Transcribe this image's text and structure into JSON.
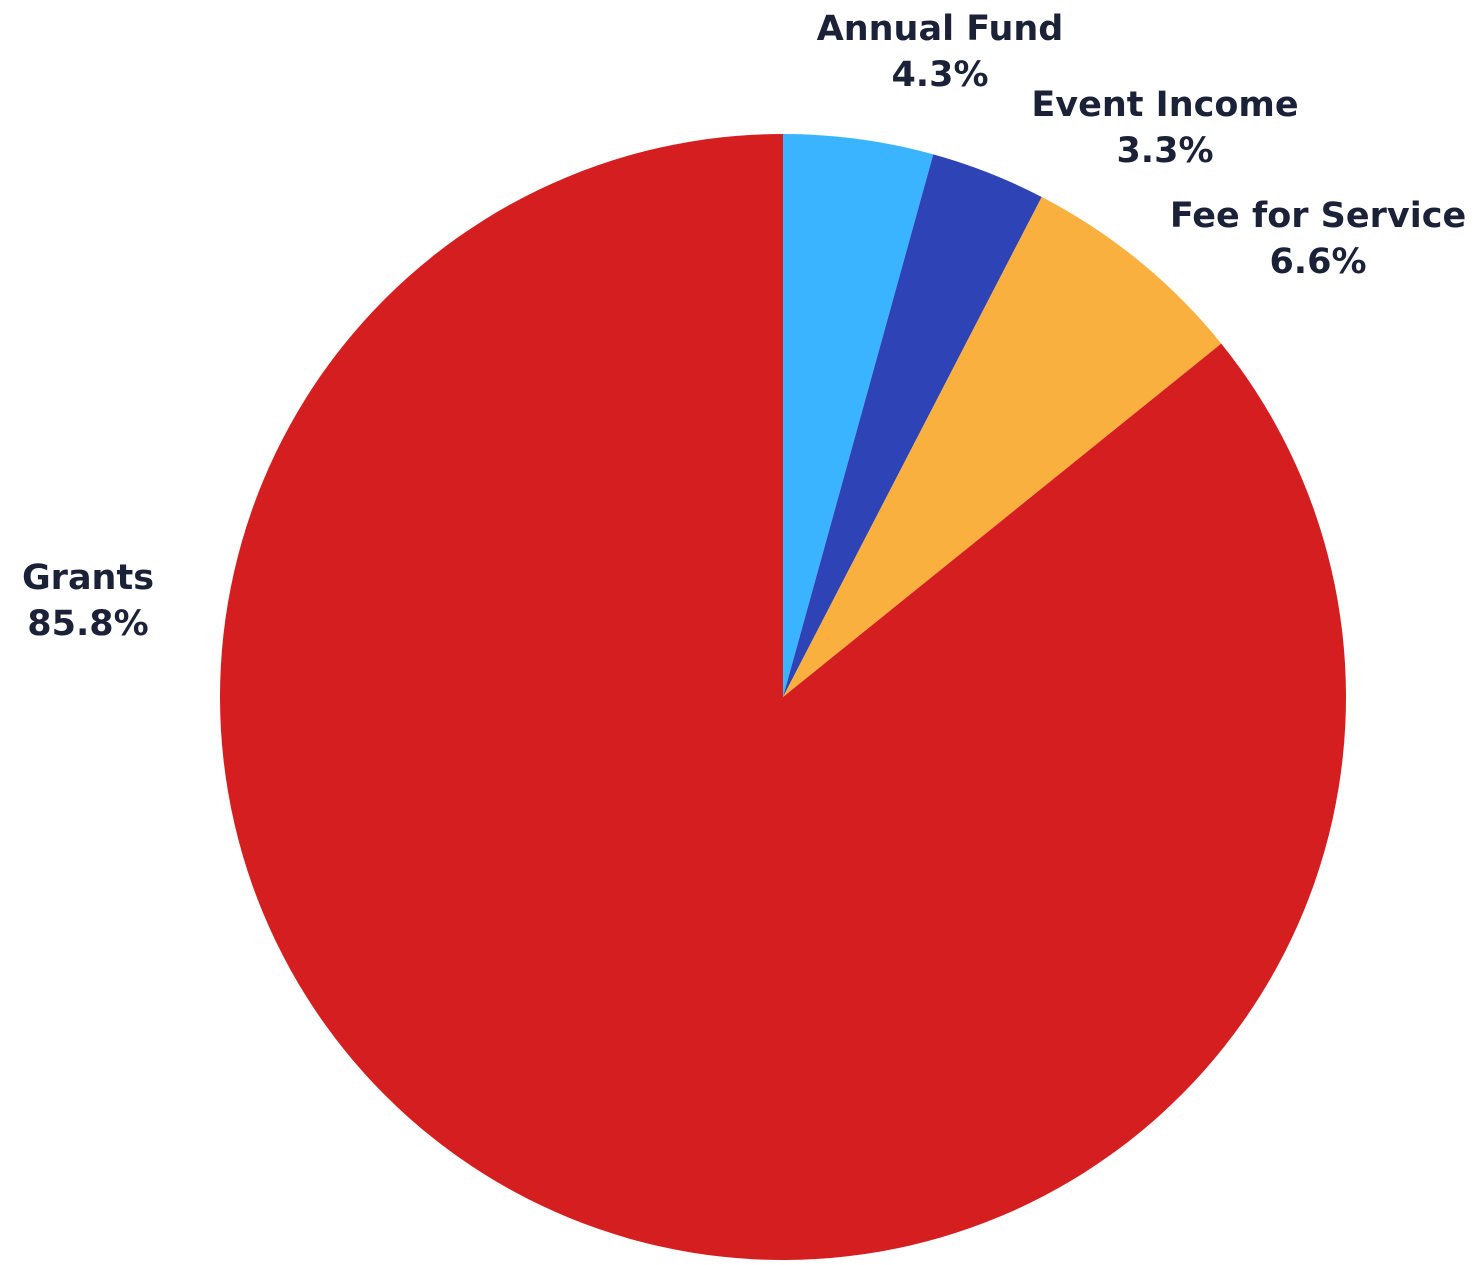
{
  "chart_data": {
    "type": "pie",
    "start_angle_deg": 0,
    "direction": "clockwise",
    "slices": [
      {
        "label": "Annual Fund",
        "value": 4.3,
        "value_label": "4.3%",
        "color": "#3bb4ff"
      },
      {
        "label": "Event Income",
        "value": 3.3,
        "value_label": "3.3%",
        "color": "#2e44b6"
      },
      {
        "label": "Fee for Service",
        "value": 6.6,
        "value_label": "6.6%",
        "color": "#f9b03f"
      },
      {
        "label": "Grants",
        "value": 85.8,
        "value_label": "85.8%",
        "color": "#d51e1f"
      }
    ]
  }
}
